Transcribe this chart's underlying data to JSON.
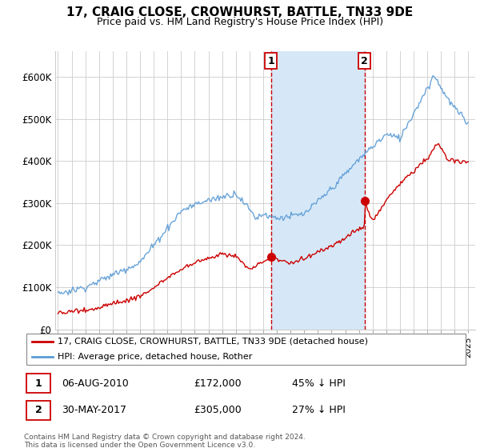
{
  "title": "17, CRAIG CLOSE, CROWHURST, BATTLE, TN33 9DE",
  "subtitle": "Price paid vs. HM Land Registry's House Price Index (HPI)",
  "ylabel_ticks": [
    "£0",
    "£100K",
    "£200K",
    "£300K",
    "£400K",
    "£500K",
    "£600K"
  ],
  "ytick_values": [
    0,
    100000,
    200000,
    300000,
    400000,
    500000,
    600000
  ],
  "ylim": [
    0,
    660000
  ],
  "xlim_start": 1994.8,
  "xlim_end": 2025.5,
  "hpi_color": "#5b9bd5",
  "price_color": "#cc0000",
  "vline_color": "#cc0000",
  "shade_color": "#d6e8f7",
  "background_color": "#ffffff",
  "grid_color": "#cccccc",
  "sale1_x": 2010.58,
  "sale1_y": 172000,
  "sale1_label": "1",
  "sale2_x": 2017.41,
  "sale2_y": 305000,
  "sale2_label": "2",
  "legend_label_price": "17, CRAIG CLOSE, CROWHURST, BATTLE, TN33 9DE (detached house)",
  "legend_label_hpi": "HPI: Average price, detached house, Rother",
  "table_rows": [
    {
      "num": "1",
      "date": "06-AUG-2010",
      "price": "£172,000",
      "pct": "45% ↓ HPI"
    },
    {
      "num": "2",
      "date": "30-MAY-2017",
      "price": "£305,000",
      "pct": "27% ↓ HPI"
    }
  ],
  "footnote": "Contains HM Land Registry data © Crown copyright and database right 2024.\nThis data is licensed under the Open Government Licence v3.0.",
  "title_fontsize": 11,
  "subtitle_fontsize": 9
}
